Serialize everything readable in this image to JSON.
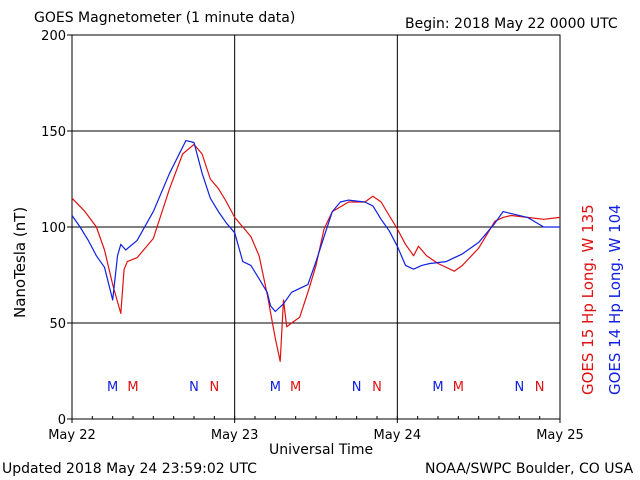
{
  "header": {
    "title": "GOES Magnetometer (1 minute data)",
    "begin": "Begin:  2018 May 22 0000 UTC"
  },
  "footer": {
    "updated": "Updated 2018 May 24 23:59:02 UTC",
    "source": "NOAA/SWPC Boulder, CO USA"
  },
  "colors": {
    "goes15": "#e01010",
    "goes14": "#1020e0",
    "grid": "#000000",
    "background": "#ffffff"
  },
  "chart_data": {
    "type": "line",
    "title": "GOES Magnetometer (1 minute data)",
    "xlabel": "Universal Time",
    "ylabel": "NanoTesla (nT)",
    "x_unit": "day offset from 2018 May 22 0000 UTC",
    "xlim": [
      0,
      3
    ],
    "ylim": [
      0,
      200
    ],
    "y_ticks": [
      0,
      50,
      100,
      150,
      200
    ],
    "x_ticks": [
      {
        "x": 0,
        "label": "May 22"
      },
      {
        "x": 1,
        "label": "May 23"
      },
      {
        "x": 2,
        "label": "May 24"
      },
      {
        "x": 3,
        "label": "May 25"
      }
    ],
    "grid": true,
    "series": [
      {
        "name": "GOES 15 Hp  Long. W 135",
        "color": "#e01010",
        "x": [
          0,
          0.08,
          0.15,
          0.2,
          0.25,
          0.3,
          0.32,
          0.34,
          0.4,
          0.5,
          0.6,
          0.68,
          0.75,
          0.8,
          0.85,
          0.9,
          0.95,
          1.0,
          1.05,
          1.1,
          1.15,
          1.2,
          1.25,
          1.28,
          1.3,
          1.32,
          1.35,
          1.4,
          1.45,
          1.5,
          1.55,
          1.6,
          1.7,
          1.8,
          1.85,
          1.9,
          1.95,
          2.0,
          2.05,
          2.1,
          2.13,
          2.18,
          2.25,
          2.35,
          2.4,
          2.5,
          2.55,
          2.6,
          2.65,
          2.7,
          2.8,
          2.9,
          3.0
        ],
        "y": [
          115,
          108,
          100,
          88,
          70,
          55,
          78,
          82,
          84,
          94,
          120,
          138,
          143,
          138,
          125,
          120,
          113,
          105,
          100,
          95,
          85,
          65,
          42,
          30,
          62,
          48,
          50,
          53,
          66,
          80,
          99,
          108,
          113,
          113,
          116,
          113,
          106,
          99,
          91,
          85,
          90,
          85,
          81,
          77,
          80,
          89,
          96,
          103,
          105,
          106,
          105,
          104,
          105
        ]
      },
      {
        "name": "GOES 14 Hp  Long. W 104",
        "color": "#1020e0",
        "x": [
          0,
          0.05,
          0.1,
          0.15,
          0.2,
          0.25,
          0.28,
          0.3,
          0.33,
          0.4,
          0.5,
          0.6,
          0.7,
          0.75,
          0.8,
          0.85,
          0.9,
          0.95,
          1.0,
          1.05,
          1.1,
          1.15,
          1.2,
          1.22,
          1.25,
          1.3,
          1.35,
          1.4,
          1.45,
          1.5,
          1.55,
          1.6,
          1.65,
          1.7,
          1.8,
          1.85,
          1.9,
          1.95,
          2.0,
          2.05,
          2.1,
          2.15,
          2.2,
          2.3,
          2.4,
          2.5,
          2.6,
          2.65,
          2.7,
          2.8,
          2.9,
          3.0
        ],
        "y": [
          106,
          100,
          93,
          85,
          79,
          62,
          85,
          91,
          88,
          93,
          108,
          128,
          145,
          144,
          128,
          115,
          108,
          102,
          97,
          82,
          80,
          73,
          66,
          59,
          56,
          60,
          66,
          68,
          70,
          82,
          95,
          108,
          113,
          114,
          113,
          111,
          104,
          98,
          90,
          80,
          78,
          80,
          81,
          82,
          86,
          92,
          102,
          108,
          107,
          105,
          100,
          100
        ]
      }
    ],
    "annotations": [
      {
        "x": 0.25,
        "text": "M",
        "series": "GOES 14 Hp  Long. W 104"
      },
      {
        "x": 0.375,
        "text": "M",
        "series": "GOES 15 Hp  Long. W 135"
      },
      {
        "x": 0.75,
        "text": "N",
        "series": "GOES 14 Hp  Long. W 104"
      },
      {
        "x": 0.875,
        "text": "N",
        "series": "GOES 15 Hp  Long. W 135"
      },
      {
        "x": 1.25,
        "text": "M",
        "series": "GOES 14 Hp  Long. W 104"
      },
      {
        "x": 1.375,
        "text": "M",
        "series": "GOES 15 Hp  Long. W 135"
      },
      {
        "x": 1.75,
        "text": "N",
        "series": "GOES 14 Hp  Long. W 104"
      },
      {
        "x": 1.875,
        "text": "N",
        "series": "GOES 15 Hp  Long. W 135"
      },
      {
        "x": 2.25,
        "text": "M",
        "series": "GOES 14 Hp  Long. W 104"
      },
      {
        "x": 2.375,
        "text": "M",
        "series": "GOES 15 Hp  Long. W 135"
      },
      {
        "x": 2.75,
        "text": "N",
        "series": "GOES 14 Hp  Long. W 104"
      },
      {
        "x": 2.875,
        "text": "N",
        "series": "GOES 15 Hp  Long. W 135"
      }
    ]
  }
}
